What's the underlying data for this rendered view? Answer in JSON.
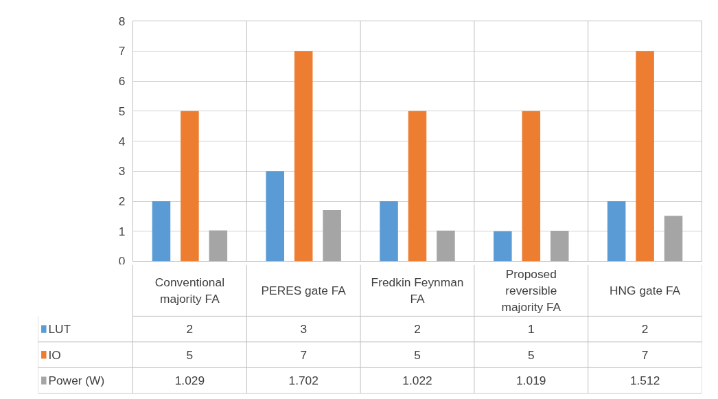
{
  "chart_data": {
    "type": "bar",
    "categories": [
      "Conventional majority FA",
      "PERES gate FA",
      "Fredkin Feynman FA",
      "Proposed reversible majority FA",
      "HNG gate FA"
    ],
    "series": [
      {
        "name": "LUT",
        "color": "#5b9bd5",
        "values": [
          2,
          3,
          2,
          1,
          2
        ]
      },
      {
        "name": "IO",
        "color": "#ed7d31",
        "values": [
          5,
          7,
          5,
          5,
          7
        ]
      },
      {
        "name": "Power (W)",
        "color": "#a5a5a5",
        "values": [
          1.029,
          1.702,
          1.022,
          1.019,
          1.512
        ]
      }
    ],
    "ylim": [
      0,
      8
    ],
    "yticks": [
      0,
      1,
      2,
      3,
      4,
      5,
      6,
      7,
      8
    ],
    "grid": "y",
    "legend": "bottom",
    "data_labels": true
  }
}
